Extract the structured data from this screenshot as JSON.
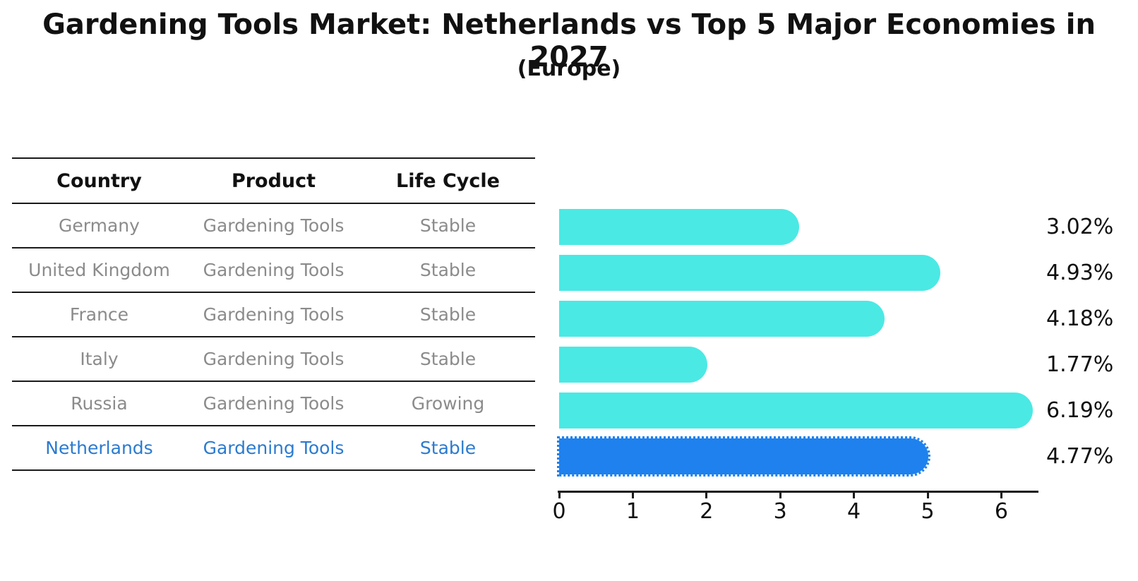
{
  "title": "Gardening Tools Market: Netherlands vs Top 5 Major Economies in 2027",
  "subtitle": "(Europe)",
  "table": {
    "headers": [
      "Country",
      "Product",
      "Life Cycle"
    ],
    "rows": [
      {
        "country": "Germany",
        "product": "Gardening Tools",
        "life_cycle": "Stable",
        "highlighted": false
      },
      {
        "country": "United Kingdom",
        "product": "Gardening Tools",
        "life_cycle": "Stable",
        "highlighted": false
      },
      {
        "country": "France",
        "product": "Gardening Tools",
        "life_cycle": "Stable",
        "highlighted": false
      },
      {
        "country": "Italy",
        "product": "Gardening Tools",
        "life_cycle": "Stable",
        "highlighted": false
      },
      {
        "country": "Russia",
        "product": "Gardening Tools",
        "life_cycle": "Growing",
        "highlighted": false
      },
      {
        "country": "Netherlands",
        "product": "Gardening Tools",
        "life_cycle": "Stable",
        "highlighted": true
      }
    ]
  },
  "chart_data": {
    "type": "bar",
    "orientation": "horizontal",
    "title": "Gardening Tools Market: Netherlands vs Top 5 Major Economies in 2027 (Europe)",
    "categories": [
      "Germany",
      "United Kingdom",
      "France",
      "Italy",
      "Russia",
      "Netherlands"
    ],
    "values": [
      3.02,
      4.93,
      4.18,
      1.77,
      6.19,
      4.77
    ],
    "value_labels": [
      "3.02%",
      "4.93%",
      "4.18%",
      "1.77%",
      "6.19%",
      "4.77%"
    ],
    "unit": "%",
    "xlim": [
      0,
      6.5
    ],
    "x_ticks": [
      "0",
      "1",
      "2",
      "3",
      "4",
      "5",
      "6"
    ],
    "grid": false,
    "legend": false,
    "highlight_index": 5
  },
  "colors": {
    "bar_teal": "#4be9e4",
    "bar_highlight_blue": "#1e81ed",
    "highlight_text_blue": "#2b7bd0",
    "row_text_gray": "#8b8b8b",
    "text_black": "#111111",
    "line_black": "#1a1a1a",
    "background": "#ffffff"
  }
}
